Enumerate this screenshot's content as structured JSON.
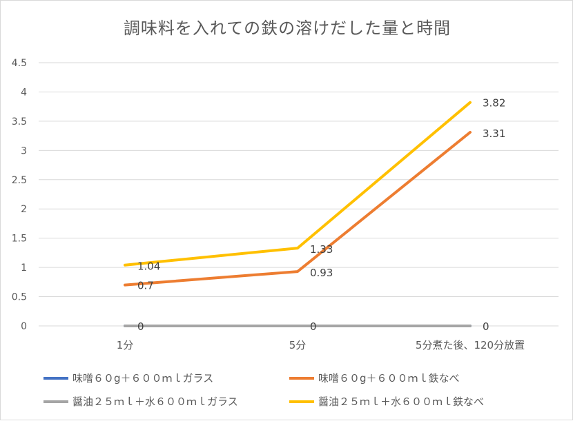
{
  "chart_data": {
    "type": "line",
    "title": "調味料を入れての鉄の溶けだした量と時間",
    "categories": [
      "1分",
      "5分",
      "5分煮た後、120分放置"
    ],
    "ylim": [
      0,
      4.5
    ],
    "yticks": [
      "0",
      "0.5",
      "1",
      "1.5",
      "2",
      "2.5",
      "3",
      "3.5",
      "4",
      "4.5"
    ],
    "grid": true,
    "legend_position": "bottom",
    "series": [
      {
        "name": "味噌６０g＋６００ｍｌガラス",
        "color": "#4472C4",
        "values": [
          0,
          0,
          0
        ],
        "labels": []
      },
      {
        "name": "味噌６０g＋６００ｍｌ鉄なべ",
        "color": "#ED7D31",
        "values": [
          0.7,
          0.93,
          3.31
        ],
        "labels": [
          "0.7",
          "0.93",
          "3.31"
        ]
      },
      {
        "name": "醤油２５ｍｌ＋水６００ｍｌガラス",
        "color": "#A5A5A5",
        "values": [
          0,
          0,
          0
        ],
        "labels": [
          "0",
          "0",
          "0"
        ]
      },
      {
        "name": "醤油２５ｍｌ＋水６００ｍｌ鉄なべ",
        "color": "#FFC000",
        "values": [
          1.04,
          1.33,
          3.82
        ],
        "labels": [
          "1.04",
          "1.33",
          "3.82"
        ]
      }
    ]
  }
}
